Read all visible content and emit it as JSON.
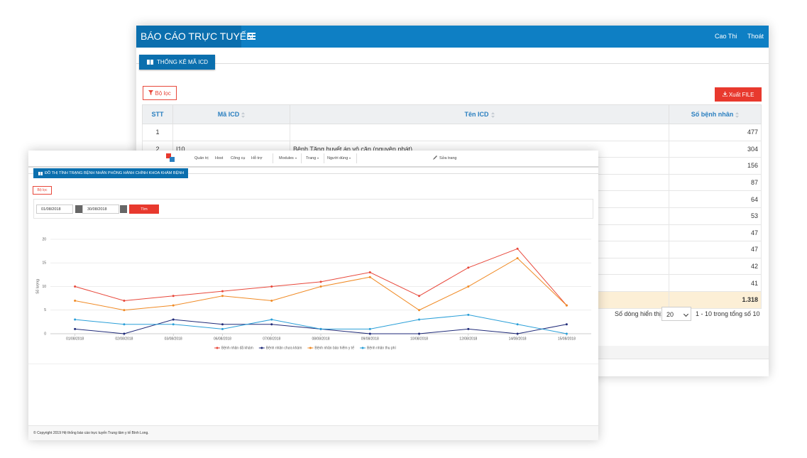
{
  "back_window": {
    "header": {
      "title": "BÁO CÁO TRỰC TUYẾN",
      "user": "Cao Thi",
      "logout": "Thoát"
    },
    "tab": "THỐNG KÊ MÃ ICD",
    "filter_button": "Bộ lọc",
    "export_button": "Xuất FILE",
    "table": {
      "columns": [
        "STT",
        "Mã ICD",
        "Tên ICD",
        "Số bệnh nhân"
      ],
      "rows": [
        {
          "stt": "1",
          "count": "477"
        },
        {
          "stt": "2",
          "code": "I10",
          "name": "Bệnh Tăng huyết áp vô căn (nguyên phát)",
          "count": "304"
        },
        {
          "count": "156"
        },
        {
          "count": "87"
        },
        {
          "count": "64"
        },
        {
          "count": "53"
        },
        {
          "count": "47"
        },
        {
          "count": "47"
        },
        {
          "count": "42"
        },
        {
          "count": "41"
        }
      ],
      "total": "1.318"
    },
    "pager": {
      "label": "Số dòng hiển thị:",
      "page_size": "20",
      "summary": "1 - 10 trong tổng số 10"
    }
  },
  "front_window": {
    "nav": {
      "menu": [
        "Quản trị",
        "Host",
        "Công cụ",
        "Hỗ trợ"
      ],
      "dropdowns": [
        "Modules",
        "Trang",
        "Người dùng"
      ],
      "edit": "Sửa trang"
    },
    "tab": "ĐỒ THỊ TÌNH TRẠNG BỆNH NHÂN PHÒNG HÀNH CHÍNH KHOA KHÁM BỆNH",
    "filter_button": "Bộ lọc",
    "date_from": "01/08/2018",
    "date_to": "30/08/2018",
    "search_button": "Tìm",
    "footer": "© Copyright 2019 Hệ thống báo cáo trực tuyến Trung tâm y tế Bình Long."
  },
  "chart_data": {
    "type": "line",
    "y_label": "Số lượng",
    "categories": [
      "01/08/2018",
      "02/08/2018",
      "03/08/2018",
      "06/08/2018",
      "07/08/2018",
      "08/08/2018",
      "09/08/2018",
      "10/08/2018",
      "12/08/2018",
      "14/08/2018",
      "15/08/2018"
    ],
    "series": [
      {
        "name": "Bệnh nhân đã khám",
        "color": "#e8473a",
        "values": [
          10,
          7,
          8,
          9,
          10,
          11,
          13,
          8,
          14,
          18,
          6
        ]
      },
      {
        "name": "Bệnh nhân chưa khám",
        "color": "#1f2a78",
        "values": [
          1,
          0,
          3,
          2,
          2,
          1,
          0,
          0,
          1,
          0,
          2
        ]
      },
      {
        "name": "Bệnh nhân bảo hiểm y tế",
        "color": "#f08a24",
        "values": [
          7,
          5,
          6,
          8,
          7,
          10,
          12,
          5,
          10,
          16,
          6
        ]
      },
      {
        "name": "Bệnh nhân thu phí",
        "color": "#2a9fd8",
        "values": [
          3,
          2,
          2,
          1,
          3,
          1,
          1,
          3,
          4,
          2,
          0
        ]
      }
    ],
    "ylim": [
      0,
      20
    ],
    "yticks": [
      0,
      5,
      10,
      15,
      20
    ],
    "grid": true,
    "legend": "bottom"
  }
}
